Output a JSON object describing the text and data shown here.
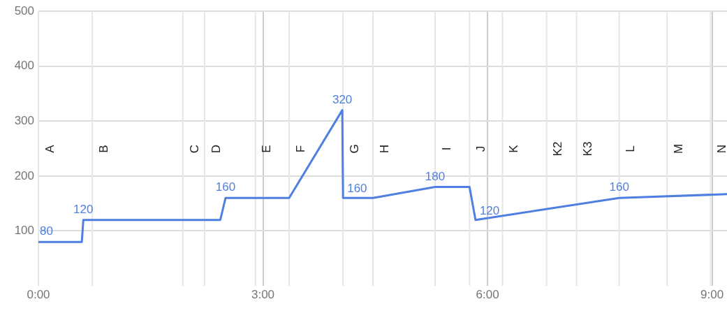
{
  "chart_data": {
    "type": "line",
    "x": [
      0,
      0.58,
      0.6,
      2.43,
      2.5,
      3.35,
      4.06,
      4.07,
      4.47,
      5.3,
      5.76,
      5.84,
      7.76,
      9.2
    ],
    "series": [
      {
        "color": "#4f7fe0",
        "values": [
          80,
          80,
          120,
          120,
          160,
          160,
          320,
          160,
          160,
          180,
          180,
          120,
          160,
          167
        ],
        "value_labels": [
          "80",
          null,
          "120",
          null,
          "160",
          null,
          "320",
          "160",
          null,
          "180",
          null,
          "120",
          "160",
          null
        ]
      }
    ],
    "xlim": [
      0,
      9.2
    ],
    "xticks": [
      {
        "value": 0,
        "label": "0:00"
      },
      {
        "value": 3,
        "label": "3:00"
      },
      {
        "value": 6,
        "label": "6:00"
      },
      {
        "value": 9,
        "label": "9:00"
      }
    ],
    "ylim": [
      0,
      500
    ],
    "yticks": [
      100,
      200,
      300,
      400,
      500
    ],
    "grid": true,
    "legend": false,
    "marker": "none",
    "line_style": "solid",
    "ref_lines": [
      {
        "axis": "x",
        "value": 0,
        "label": "A",
        "color": "#e6e6e6"
      },
      {
        "axis": "x",
        "value": 0.72,
        "label": "B",
        "color": "#e6e6e6"
      },
      {
        "axis": "x",
        "value": 1.93,
        "label": "C",
        "color": "#e6e6e6"
      },
      {
        "axis": "x",
        "value": 2.22,
        "label": "D",
        "color": "#e6e6e6"
      },
      {
        "axis": "x",
        "value": 2.9,
        "label": "E",
        "color": "#e6e6e6"
      },
      {
        "axis": "x",
        "value": 3.35,
        "label": "F",
        "color": "#e6e6e6"
      },
      {
        "axis": "x",
        "value": 4.07,
        "label": "G",
        "color": "#e6e6e6"
      },
      {
        "axis": "x",
        "value": 4.47,
        "label": "H",
        "color": "#e6e6e6"
      },
      {
        "axis": "x",
        "value": 5.3,
        "label": "I",
        "color": "#e6e6e6"
      },
      {
        "axis": "x",
        "value": 5.76,
        "label": "J",
        "color": "#e6e6e6"
      },
      {
        "axis": "x",
        "value": 6.2,
        "label": "K",
        "color": "#e6e6e6"
      },
      {
        "axis": "x",
        "value": 6.79,
        "label": "K2",
        "color": "#e6e6e6"
      },
      {
        "axis": "x",
        "value": 7.19,
        "label": "K3",
        "color": "#e6e6e6"
      },
      {
        "axis": "x",
        "value": 7.76,
        "label": "L",
        "color": "#e6e6e6"
      },
      {
        "axis": "x",
        "value": 8.4,
        "label": "M",
        "color": "#e6e6e6"
      },
      {
        "axis": "x",
        "value": 8.98,
        "label": "N",
        "color": "#e6e6e6"
      }
    ]
  }
}
